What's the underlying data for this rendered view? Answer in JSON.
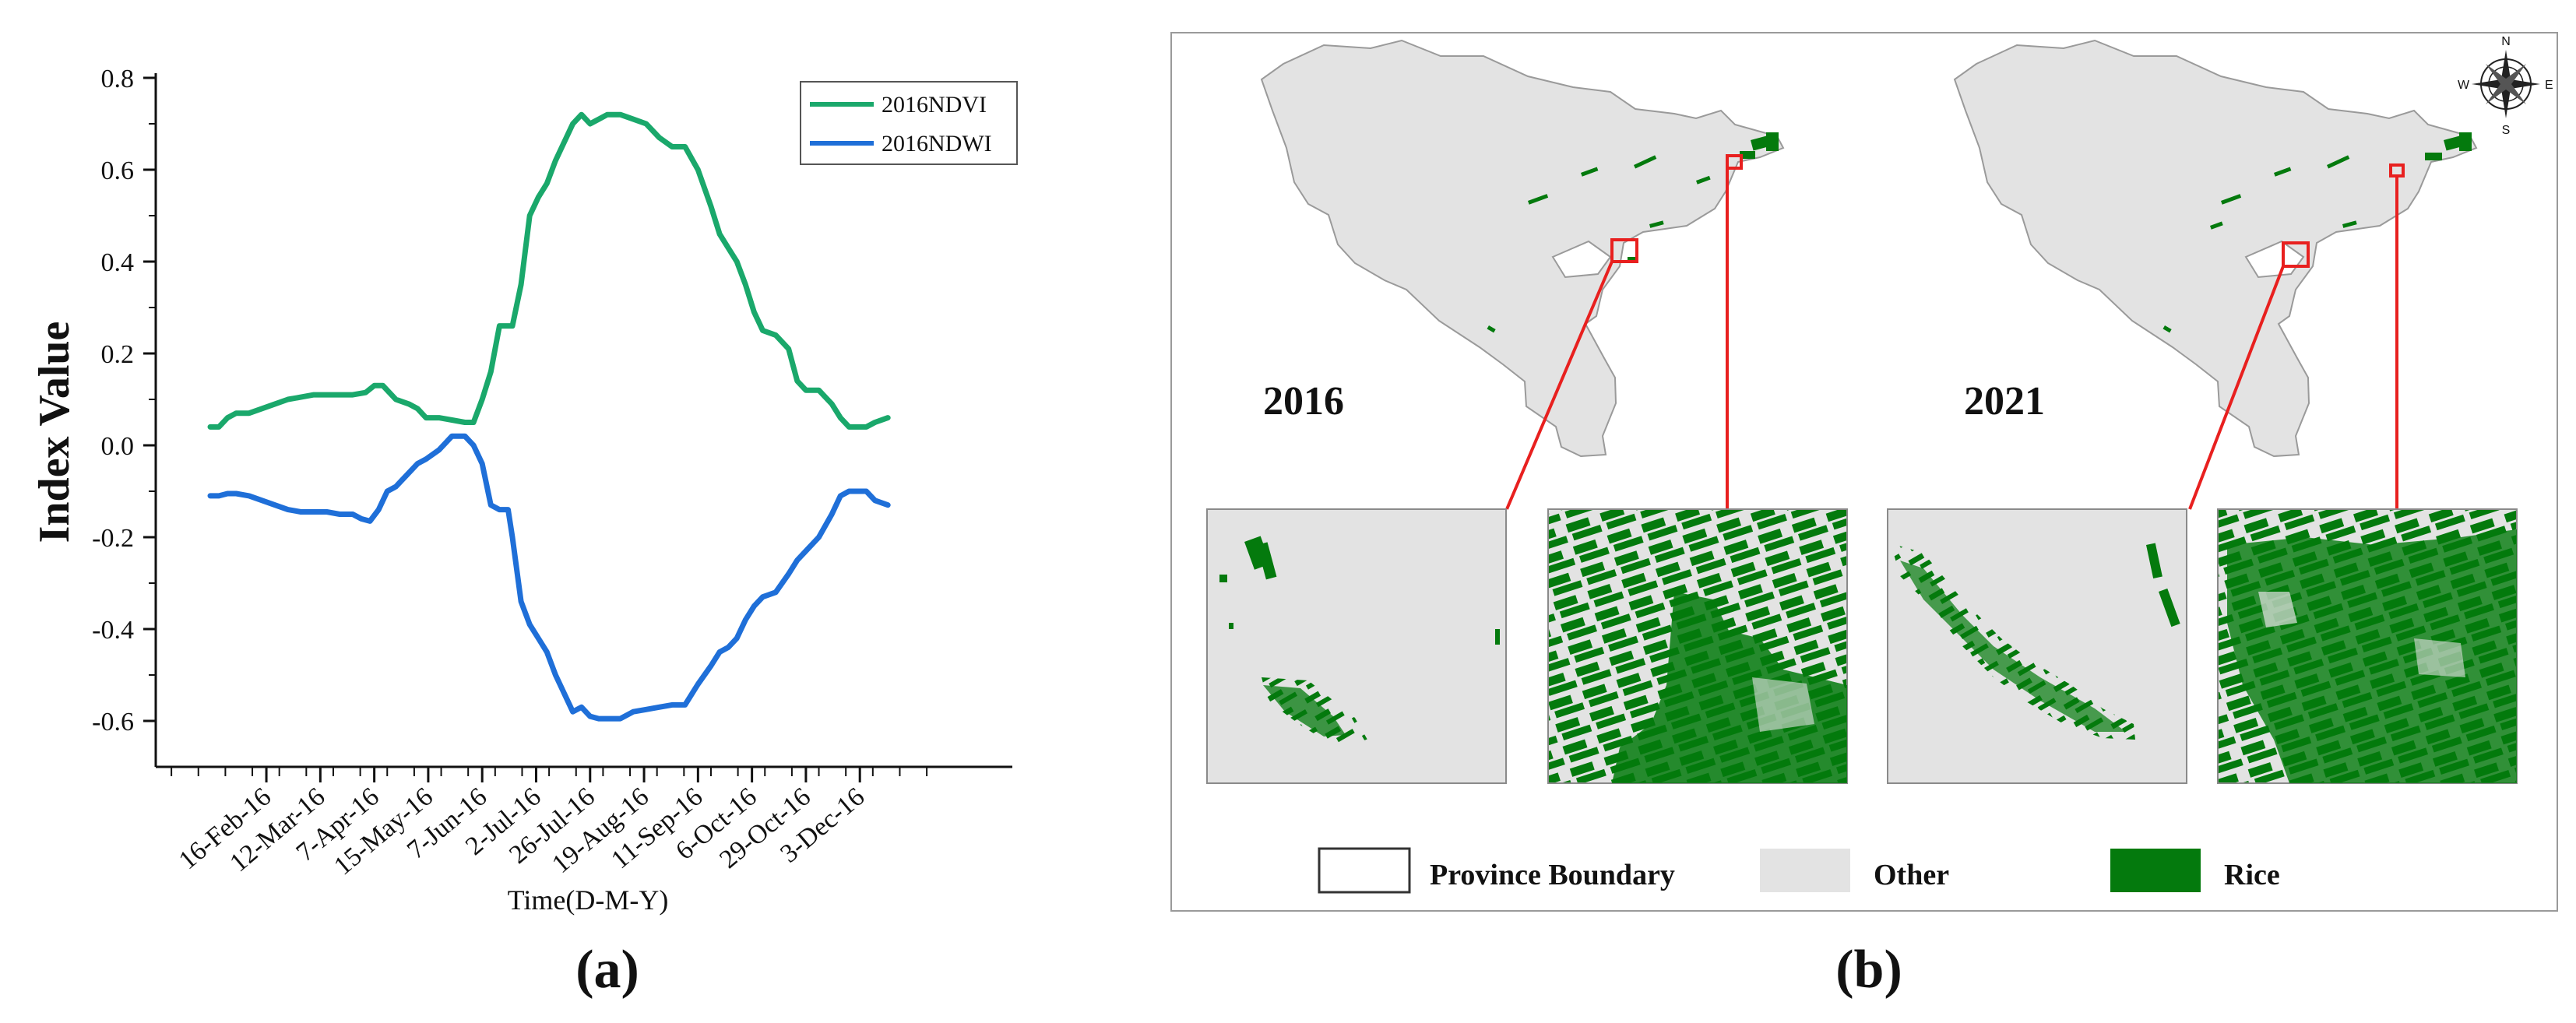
{
  "panel_a": {
    "caption": "(a)",
    "chart_data": {
      "type": "line",
      "ylabel": "Index Value",
      "xlabel": "Time(D-M-Y)",
      "ylim": [
        -0.7,
        0.8
      ],
      "yticks": [
        "0.8",
        "0.6",
        "0.4",
        "0.2",
        "0.0",
        "-0.2",
        "-0.4",
        "-0.6"
      ],
      "ytick_values": [
        0.8,
        0.6,
        0.4,
        0.2,
        0.0,
        -0.2,
        -0.4,
        -0.6
      ],
      "xlim": [
        0,
        350
      ],
      "xticks": [
        "16-Feb-16",
        "12-Mar-16",
        "7-Apr-16",
        "15-May-16",
        "7-Jun-16",
        "2-Jul-16",
        "26-Jul-16",
        "19-Aug-16",
        "11-Sep-16",
        "6-Oct-16",
        "29-Oct-16",
        "3-Dec-16"
      ],
      "xtick_values": [
        26,
        51,
        76,
        101,
        126,
        151,
        176,
        201,
        226,
        251,
        276,
        301
      ],
      "legend_position": "top-right",
      "series": [
        {
          "name": "2016NDVI",
          "color": "#1aa86b",
          "x": [
            0,
            4,
            8,
            12,
            18,
            24,
            30,
            36,
            42,
            48,
            54,
            60,
            66,
            72,
            76,
            80,
            86,
            92,
            96,
            100,
            106,
            112,
            118,
            122,
            126,
            130,
            134,
            138,
            140,
            144,
            148,
            152,
            156,
            160,
            164,
            168,
            172,
            176,
            180,
            184,
            190,
            196,
            202,
            208,
            214,
            220,
            226,
            232,
            236,
            240,
            244,
            248,
            252,
            256,
            262,
            268,
            272,
            276,
            282,
            288,
            292,
            296,
            300,
            304,
            308,
            314
          ],
          "values": [
            0.04,
            0.04,
            0.06,
            0.07,
            0.07,
            0.08,
            0.09,
            0.1,
            0.105,
            0.11,
            0.11,
            0.11,
            0.11,
            0.115,
            0.13,
            0.13,
            0.1,
            0.09,
            0.08,
            0.06,
            0.06,
            0.055,
            0.05,
            0.05,
            0.1,
            0.16,
            0.26,
            0.26,
            0.26,
            0.35,
            0.5,
            0.54,
            0.57,
            0.62,
            0.66,
            0.7,
            0.72,
            0.7,
            0.71,
            0.72,
            0.72,
            0.71,
            0.7,
            0.67,
            0.65,
            0.65,
            0.6,
            0.52,
            0.46,
            0.43,
            0.4,
            0.35,
            0.29,
            0.25,
            0.24,
            0.21,
            0.14,
            0.12,
            0.12,
            0.09,
            0.06,
            0.04,
            0.04,
            0.04,
            0.05,
            0.06
          ]
        },
        {
          "name": "2016NDWI",
          "color": "#1f6fd8",
          "x": [
            0,
            4,
            8,
            12,
            18,
            24,
            30,
            36,
            42,
            48,
            54,
            60,
            66,
            70,
            74,
            78,
            82,
            86,
            90,
            96,
            100,
            106,
            112,
            118,
            122,
            126,
            130,
            134,
            138,
            140,
            144,
            148,
            152,
            156,
            160,
            164,
            168,
            172,
            176,
            180,
            184,
            190,
            196,
            202,
            208,
            214,
            220,
            226,
            232,
            236,
            240,
            244,
            248,
            252,
            256,
            262,
            268,
            272,
            276,
            282,
            288,
            292,
            296,
            300,
            304,
            308,
            314
          ],
          "values": [
            -0.11,
            -0.11,
            -0.105,
            -0.105,
            -0.11,
            -0.12,
            -0.13,
            -0.14,
            -0.145,
            -0.145,
            -0.145,
            -0.15,
            -0.15,
            -0.16,
            -0.165,
            -0.14,
            -0.1,
            -0.09,
            -0.07,
            -0.04,
            -0.03,
            -0.01,
            0.02,
            0.02,
            0.0,
            -0.04,
            -0.13,
            -0.14,
            -0.14,
            -0.2,
            -0.34,
            -0.39,
            -0.42,
            -0.45,
            -0.5,
            -0.54,
            -0.58,
            -0.57,
            -0.59,
            -0.595,
            -0.595,
            -0.595,
            -0.58,
            -0.575,
            -0.57,
            -0.565,
            -0.565,
            -0.52,
            -0.48,
            -0.45,
            -0.44,
            -0.42,
            -0.38,
            -0.35,
            -0.33,
            -0.32,
            -0.28,
            -0.25,
            -0.23,
            -0.2,
            -0.15,
            -0.11,
            -0.1,
            -0.1,
            -0.1,
            -0.12,
            -0.13
          ]
        }
      ]
    }
  },
  "panel_b": {
    "caption": "(b)",
    "year_left": "2016",
    "year_right": "2021",
    "compass": {
      "n": "N",
      "s": "S",
      "e": "E",
      "w": "W"
    },
    "legend": [
      {
        "label": "Province Boundary",
        "swatch": "#ffffff"
      },
      {
        "label": "Other",
        "swatch": "#e3e3e3"
      },
      {
        "label": "Rice",
        "swatch": "#047a0d"
      }
    ],
    "colors": {
      "land": "#e3e3e3",
      "rice": "#047a0d",
      "highlight": "#e8201f",
      "border": "#888888"
    }
  }
}
